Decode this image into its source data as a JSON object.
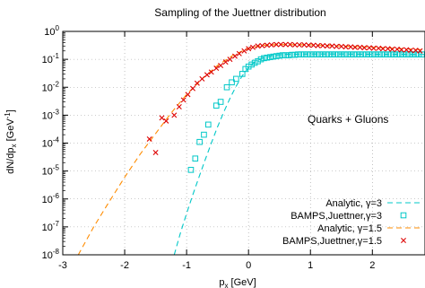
{
  "chart_data": {
    "type": "scatter",
    "title": "Sampling of the Juettner distribution",
    "xlabel": {
      "main": "p",
      "sub": "x",
      "unit": " [GeV]"
    },
    "ylabel": {
      "pre": "dN/dp",
      "sub": "x",
      "mid": " [GeV",
      "sup": "-1",
      "post": "]"
    },
    "xlim": [
      -3,
      2.85
    ],
    "ylim_log10": [
      -8,
      0
    ],
    "y_scale": "log",
    "grid": "dotted",
    "x_ticks": [
      {
        "value": -3,
        "label": "-3"
      },
      {
        "value": -2,
        "label": "-2"
      },
      {
        "value": -1,
        "label": "-1"
      },
      {
        "value": 0,
        "label": "0"
      },
      {
        "value": 1,
        "label": "1"
      },
      {
        "value": 2,
        "label": "2"
      }
    ],
    "y_ticks": [
      {
        "exp": 0,
        "label": "10",
        "sup": "0"
      },
      {
        "exp": -1,
        "label": "10",
        "sup": "-1"
      },
      {
        "exp": -2,
        "label": "10",
        "sup": "-2"
      },
      {
        "exp": -3,
        "label": "10",
        "sup": "-3"
      },
      {
        "exp": -4,
        "label": "10",
        "sup": "-4"
      },
      {
        "exp": -5,
        "label": "10",
        "sup": "-5"
      },
      {
        "exp": -6,
        "label": "10",
        "sup": "-6"
      },
      {
        "exp": -7,
        "label": "10",
        "sup": "-7"
      },
      {
        "exp": -8,
        "label": "10",
        "sup": "-8"
      }
    ],
    "annotation": "Quarks + Gluons",
    "legend_position": "bottom-right",
    "series": [
      {
        "name": "Analytic, γ=3",
        "style": "dashed-line",
        "color": "#00c8c8",
        "points": [
          [
            -1.2,
            1e-08
          ],
          [
            -1.1,
            6e-08
          ],
          [
            -1.0,
            3e-07
          ],
          [
            -0.9,
            1.4e-06
          ],
          [
            -0.8,
            6e-06
          ],
          [
            -0.7,
            2.5e-05
          ],
          [
            -0.6,
            0.0001
          ],
          [
            -0.5,
            0.00038
          ],
          [
            -0.4,
            0.0013
          ],
          [
            -0.3,
            0.004
          ],
          [
            -0.2,
            0.011
          ],
          [
            -0.1,
            0.026
          ],
          [
            0.0,
            0.05
          ],
          [
            0.1,
            0.08
          ],
          [
            0.2,
            0.105
          ],
          [
            0.4,
            0.14
          ],
          [
            0.6,
            0.15
          ],
          [
            1.0,
            0.155
          ],
          [
            1.5,
            0.155
          ],
          [
            2.0,
            0.152
          ],
          [
            2.5,
            0.15
          ],
          [
            2.85,
            0.148
          ]
        ]
      },
      {
        "name": "BAMPS,Juettner,γ=3",
        "style": "open-square",
        "color": "#00c8c8",
        "points": [
          [
            -0.93,
            1.1e-05
          ],
          [
            -0.86,
            2.8e-05
          ],
          [
            -0.79,
            0.00011
          ],
          [
            -0.72,
            0.0002
          ],
          [
            -0.65,
            0.00046
          ],
          [
            -0.52,
            0.0022
          ],
          [
            -0.45,
            0.003
          ],
          [
            -0.35,
            0.01
          ],
          [
            -0.27,
            0.015
          ],
          [
            -0.2,
            0.02
          ],
          [
            -0.1,
            0.03
          ],
          [
            -0.05,
            0.045
          ],
          [
            0.0,
            0.055
          ],
          [
            0.05,
            0.065
          ],
          [
            0.1,
            0.075
          ],
          [
            0.15,
            0.085
          ],
          [
            0.2,
            0.1
          ],
          [
            0.25,
            0.11
          ],
          [
            0.3,
            0.115
          ],
          [
            0.35,
            0.12
          ],
          [
            0.4,
            0.125
          ],
          [
            0.45,
            0.13
          ],
          [
            0.5,
            0.135
          ],
          [
            0.55,
            0.14
          ],
          [
            0.6,
            0.14
          ],
          [
            0.65,
            0.14
          ],
          [
            0.7,
            0.145
          ],
          [
            0.75,
            0.145
          ],
          [
            0.8,
            0.15
          ],
          [
            0.85,
            0.15
          ],
          [
            0.9,
            0.15
          ],
          [
            0.95,
            0.15
          ],
          [
            1.0,
            0.15
          ],
          [
            1.05,
            0.15
          ],
          [
            1.1,
            0.15
          ],
          [
            1.15,
            0.15
          ],
          [
            1.2,
            0.15
          ],
          [
            1.25,
            0.15
          ],
          [
            1.3,
            0.15
          ],
          [
            1.35,
            0.15
          ],
          [
            1.4,
            0.15
          ],
          [
            1.45,
            0.15
          ],
          [
            1.5,
            0.15
          ],
          [
            1.55,
            0.15
          ],
          [
            1.6,
            0.15
          ],
          [
            1.65,
            0.15
          ],
          [
            1.7,
            0.15
          ],
          [
            1.75,
            0.15
          ],
          [
            1.8,
            0.15
          ],
          [
            1.85,
            0.15
          ],
          [
            1.9,
            0.15
          ],
          [
            1.95,
            0.15
          ],
          [
            2.0,
            0.15
          ],
          [
            2.05,
            0.15
          ],
          [
            2.1,
            0.15
          ],
          [
            2.15,
            0.15
          ],
          [
            2.2,
            0.15
          ],
          [
            2.25,
            0.15
          ],
          [
            2.3,
            0.15
          ],
          [
            2.35,
            0.15
          ],
          [
            2.4,
            0.15
          ],
          [
            2.45,
            0.15
          ],
          [
            2.5,
            0.15
          ],
          [
            2.55,
            0.15
          ],
          [
            2.6,
            0.15
          ],
          [
            2.65,
            0.15
          ],
          [
            2.7,
            0.15
          ],
          [
            2.75,
            0.15
          ],
          [
            2.8,
            0.15
          ]
        ]
      },
      {
        "name": "Analytic, γ=1.5",
        "style": "dashed-line",
        "color": "#ff8c00",
        "points": [
          [
            -2.75,
            1e-08
          ],
          [
            -2.5,
            1e-07
          ],
          [
            -2.25,
            8e-07
          ],
          [
            -2.0,
            6e-06
          ],
          [
            -1.75,
            4e-05
          ],
          [
            -1.5,
            0.00022
          ],
          [
            -1.25,
            0.0012
          ],
          [
            -1.0,
            0.0055
          ],
          [
            -0.75,
            0.02
          ],
          [
            -0.5,
            0.06
          ],
          [
            -0.25,
            0.14
          ],
          [
            0.0,
            0.25
          ],
          [
            0.25,
            0.32
          ],
          [
            0.5,
            0.34
          ],
          [
            1.0,
            0.33
          ],
          [
            1.5,
            0.3
          ],
          [
            2.0,
            0.27
          ],
          [
            2.5,
            0.24
          ],
          [
            2.85,
            0.22
          ]
        ]
      },
      {
        "name": "BAMPS,Juettner,γ=1.5",
        "style": "cross",
        "color": "#dd0000",
        "points": [
          [
            -1.6,
            0.00014
          ],
          [
            -1.5,
            4.6e-05
          ],
          [
            -1.4,
            0.0008
          ],
          [
            -1.33,
            0.00062
          ],
          [
            -1.2,
            0.001
          ],
          [
            -1.12,
            0.002
          ],
          [
            -1.05,
            0.0035
          ],
          [
            -0.98,
            0.0055
          ],
          [
            -0.9,
            0.009
          ],
          [
            -0.83,
            0.014
          ],
          [
            -0.75,
            0.02
          ],
          [
            -0.67,
            0.028
          ],
          [
            -0.6,
            0.035
          ],
          [
            -0.52,
            0.048
          ],
          [
            -0.45,
            0.06
          ],
          [
            -0.37,
            0.08
          ],
          [
            -0.3,
            0.1
          ],
          [
            -0.22,
            0.13
          ],
          [
            -0.15,
            0.16
          ],
          [
            -0.07,
            0.2
          ],
          [
            0.0,
            0.24
          ],
          [
            0.07,
            0.27
          ],
          [
            0.15,
            0.3
          ],
          [
            0.22,
            0.31
          ],
          [
            0.3,
            0.32
          ],
          [
            0.37,
            0.33
          ],
          [
            0.45,
            0.34
          ],
          [
            0.52,
            0.34
          ],
          [
            0.6,
            0.34
          ],
          [
            0.67,
            0.34
          ],
          [
            0.75,
            0.33
          ],
          [
            0.82,
            0.33
          ],
          [
            0.9,
            0.33
          ],
          [
            0.97,
            0.32
          ],
          [
            1.05,
            0.32
          ],
          [
            1.12,
            0.31
          ],
          [
            1.2,
            0.31
          ],
          [
            1.27,
            0.3
          ],
          [
            1.35,
            0.3
          ],
          [
            1.42,
            0.29
          ],
          [
            1.5,
            0.29
          ],
          [
            1.57,
            0.28
          ],
          [
            1.65,
            0.28
          ],
          [
            1.72,
            0.27
          ],
          [
            1.8,
            0.27
          ],
          [
            1.87,
            0.26
          ],
          [
            1.95,
            0.26
          ],
          [
            2.02,
            0.25
          ],
          [
            2.1,
            0.25
          ],
          [
            2.17,
            0.24
          ],
          [
            2.25,
            0.24
          ],
          [
            2.32,
            0.23
          ],
          [
            2.4,
            0.23
          ],
          [
            2.47,
            0.22
          ],
          [
            2.55,
            0.22
          ],
          [
            2.62,
            0.21
          ],
          [
            2.7,
            0.21
          ],
          [
            2.77,
            0.2
          ]
        ]
      }
    ]
  }
}
